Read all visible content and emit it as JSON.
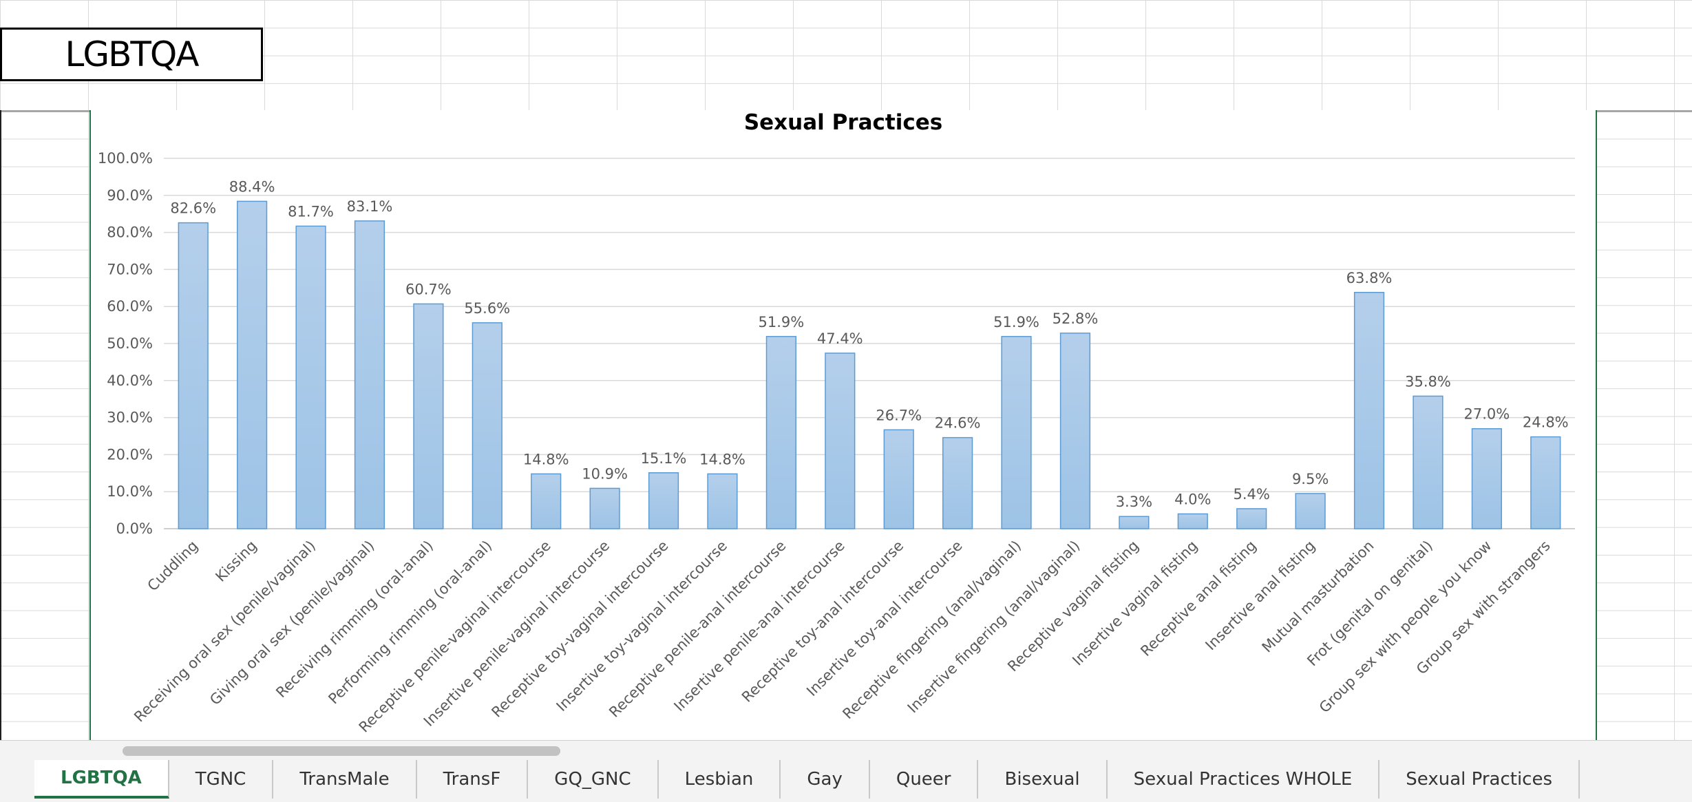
{
  "sheet": {
    "title_cell": "LGBTQA"
  },
  "chart_data": {
    "type": "bar",
    "title": "Sexual Practices",
    "xlabel": "",
    "ylabel": "",
    "ylim": [
      0,
      100
    ],
    "y_ticks": [
      "0.0%",
      "10.0%",
      "20.0%",
      "30.0%",
      "40.0%",
      "50.0%",
      "60.0%",
      "70.0%",
      "80.0%",
      "90.0%",
      "100.0%"
    ],
    "grid": true,
    "bar_color": "#9dc3e6",
    "bar_edge_color": "#5b9bd5",
    "categories": [
      "Cuddling",
      "Kissing",
      "Receiving oral sex (penile/vaginal)",
      "Giving oral sex (penile/vaginal)",
      "Receiving rimming (oral-anal)",
      "Performing rimming (oral-anal)",
      "Receptive penile-vaginal intercourse",
      "Insertive penile-vaginal intercourse",
      "Receptive toy-vaginal intercourse",
      "Insertive toy-vaginal intercourse",
      "Receptive penile-anal intercourse",
      "Insertive penile-anal intercourse",
      "Receptive toy-anal intercourse",
      "Insertive toy-anal intercourse",
      "Receptive fingering (anal/vaginal)",
      "Insertive fingering (anal/vaginal)",
      "Receptive vaginal fisting",
      "Insertive vaginal fisting",
      "Receptive anal fisting",
      "Insertive anal fisting",
      "Mutual masturbation",
      "Frot (genital on genital)",
      "Group sex with people you know",
      "Group sex with strangers"
    ],
    "values": [
      82.6,
      88.4,
      81.7,
      83.1,
      60.7,
      55.6,
      14.8,
      10.9,
      15.1,
      14.8,
      51.9,
      47.4,
      26.7,
      24.6,
      51.9,
      52.8,
      3.3,
      4.0,
      5.4,
      9.5,
      63.8,
      35.8,
      27.0,
      24.8
    ],
    "data_labels": [
      "82.6%",
      "88.4%",
      "81.7%",
      "83.1%",
      "60.7%",
      "55.6%",
      "14.8%",
      "10.9%",
      "15.1%",
      "14.8%",
      "51.9%",
      "47.4%",
      "26.7%",
      "24.6%",
      "51.9%",
      "52.8%",
      "3.3%",
      "4.0%",
      "5.4%",
      "9.5%",
      "63.8%",
      "35.8%",
      "27.0%",
      "24.8%"
    ]
  },
  "tabs": [
    {
      "label": "LGBTQA",
      "active": true
    },
    {
      "label": "TGNC",
      "active": false
    },
    {
      "label": "TransMale",
      "active": false
    },
    {
      "label": "TransF",
      "active": false
    },
    {
      "label": "GQ_GNC",
      "active": false
    },
    {
      "label": "Lesbian",
      "active": false
    },
    {
      "label": "Gay",
      "active": false
    },
    {
      "label": "Queer",
      "active": false
    },
    {
      "label": "Bisexual",
      "active": false
    },
    {
      "label": "Sexual Practices WHOLE",
      "active": false
    },
    {
      "label": "Sexual Practices",
      "active": false
    }
  ],
  "colors": {
    "accent": "#217346",
    "grid": "#d9d9d9"
  }
}
